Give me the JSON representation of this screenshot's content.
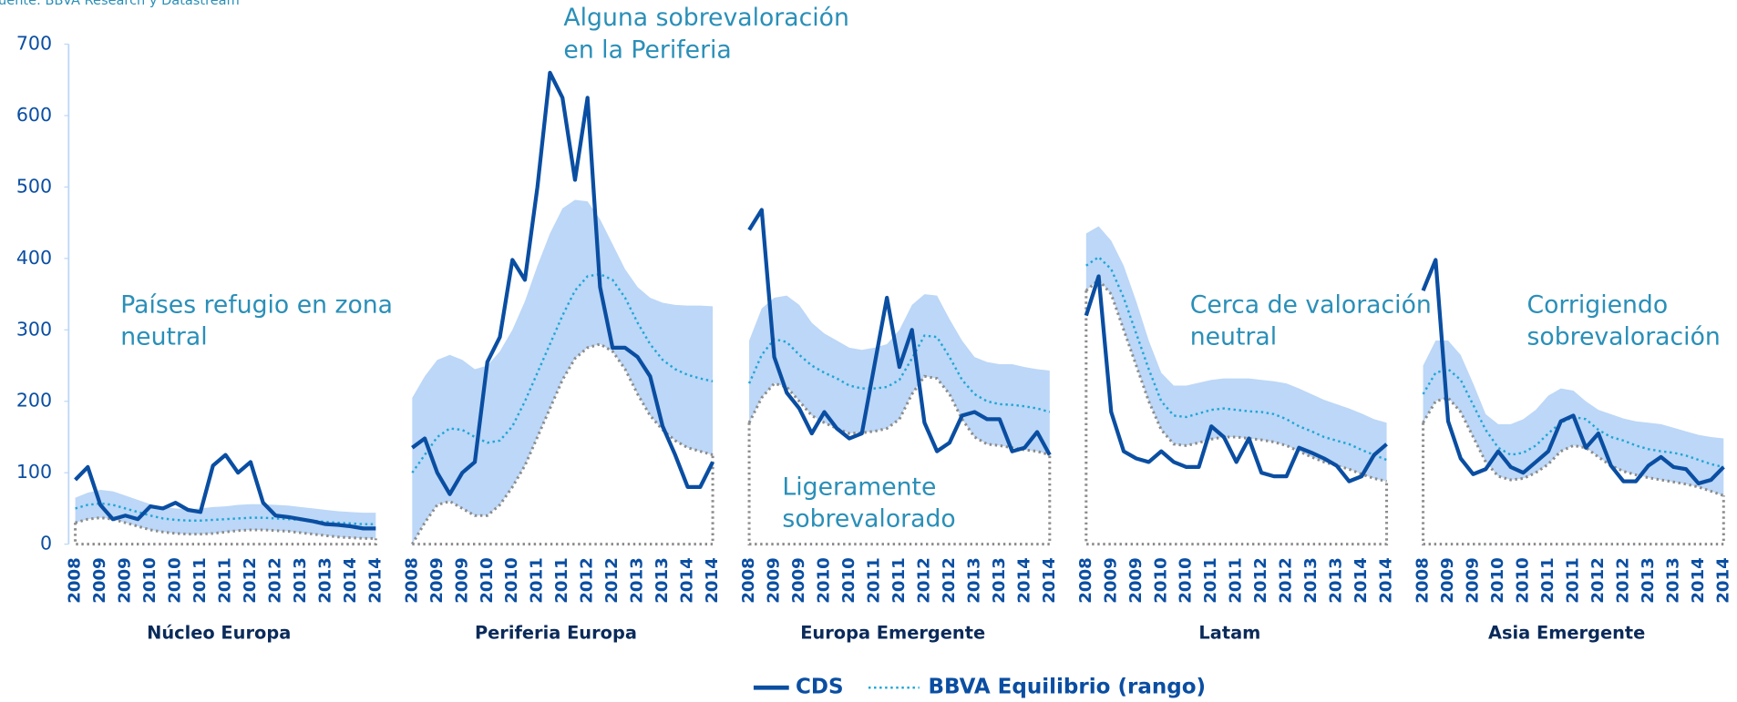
{
  "chart_data": {
    "type": "line",
    "source": "Fuente: BBVA Research y Datastream",
    "ylim": [
      0,
      700
    ],
    "yticks": [
      0,
      100,
      200,
      300,
      400,
      500,
      600,
      700
    ],
    "series": [
      {
        "name": "CDS",
        "color": "#0a4ea2"
      },
      {
        "name": "BBVA Equilibrio (rango)",
        "color": "#1fa5d6",
        "band_color": "#bcd7f7",
        "low_color": "#8c8c8c"
      }
    ],
    "panels": [
      {
        "name": "Núcleo Europa",
        "annotation": [
          "Países refugio en zona",
          "neutral"
        ],
        "categories": [
          "2008",
          null,
          "2009",
          null,
          "2009",
          null,
          "2010",
          null,
          "2010",
          null,
          "2011",
          null,
          "2011",
          null,
          "2012",
          null,
          "2012",
          null,
          "2013",
          null,
          "2013",
          null,
          "2014",
          null,
          "2014"
        ],
        "cds": [
          90,
          108,
          55,
          35,
          40,
          35,
          53,
          50,
          58,
          48,
          45,
          110,
          125,
          100,
          115,
          58,
          40,
          38,
          35,
          32,
          28,
          27,
          25,
          22,
          22
        ],
        "mid": [
          50,
          55,
          57,
          55,
          50,
          45,
          40,
          36,
          34,
          33,
          33,
          34,
          35,
          36,
          37,
          37,
          36,
          35,
          34,
          33,
          31,
          30,
          29,
          28,
          28
        ],
        "high": [
          65,
          72,
          76,
          74,
          68,
          62,
          56,
          52,
          50,
          49,
          50,
          52,
          53,
          55,
          56,
          56,
          55,
          54,
          52,
          50,
          48,
          46,
          45,
          44,
          44
        ],
        "low": [
          30,
          35,
          37,
          35,
          30,
          25,
          20,
          17,
          15,
          14,
          14,
          15,
          17,
          19,
          20,
          20,
          19,
          18,
          16,
          14,
          12,
          10,
          9,
          8,
          8
        ]
      },
      {
        "name": "Periferia Europa",
        "annotation": [
          "Alguna sobrevaloración",
          "en la Periferia"
        ],
        "categories": [
          "2008",
          null,
          "2009",
          null,
          "2009",
          null,
          "2010",
          null,
          "2010",
          null,
          "2011",
          null,
          "2011",
          null,
          "2012",
          null,
          "2012",
          null,
          "2013",
          null,
          "2013",
          null,
          "2014",
          null,
          "2014"
        ],
        "cds": [
          135,
          148,
          100,
          70,
          100,
          115,
          255,
          290,
          398,
          370,
          500,
          660,
          625,
          510,
          625,
          360,
          275,
          275,
          262,
          235,
          165,
          125,
          80,
          80,
          115
        ],
        "mid": [
          100,
          125,
          150,
          162,
          160,
          150,
          142,
          145,
          165,
          200,
          240,
          280,
          320,
          355,
          375,
          378,
          370,
          345,
          310,
          280,
          258,
          245,
          237,
          232,
          228
        ],
        "high": [
          205,
          235,
          258,
          265,
          258,
          245,
          250,
          270,
          300,
          340,
          390,
          435,
          470,
          482,
          480,
          455,
          420,
          385,
          360,
          345,
          338,
          335,
          334,
          334,
          333
        ],
        "low": [
          0,
          30,
          55,
          60,
          50,
          40,
          40,
          55,
          80,
          110,
          150,
          190,
          230,
          260,
          275,
          280,
          270,
          245,
          210,
          180,
          160,
          145,
          135,
          130,
          125
        ]
      },
      {
        "name": "Europa Emergente",
        "annotation": [
          "Ligeramente",
          "sobrevalorado"
        ],
        "categories": [
          "2008",
          null,
          "2009",
          null,
          "2009",
          null,
          "2010",
          null,
          "2010",
          null,
          "2011",
          null,
          "2011",
          null,
          "2012",
          null,
          "2012",
          null,
          "2013",
          null,
          "2013",
          null,
          "2014",
          null,
          "2014"
        ],
        "cds": [
          440,
          468,
          262,
          212,
          190,
          155,
          185,
          162,
          148,
          155,
          250,
          345,
          248,
          300,
          170,
          130,
          142,
          180,
          185,
          175,
          175,
          130,
          135,
          157,
          125
        ],
        "mid": [
          225,
          265,
          287,
          283,
          265,
          250,
          240,
          232,
          222,
          218,
          218,
          220,
          230,
          260,
          292,
          290,
          262,
          230,
          210,
          200,
          196,
          195,
          193,
          190,
          185
        ],
        "high": [
          285,
          330,
          345,
          348,
          335,
          310,
          295,
          285,
          275,
          272,
          275,
          280,
          300,
          335,
          350,
          348,
          315,
          285,
          262,
          255,
          252,
          252,
          248,
          245,
          243
        ],
        "low": [
          170,
          205,
          225,
          220,
          200,
          180,
          170,
          162,
          155,
          156,
          158,
          162,
          175,
          210,
          235,
          232,
          210,
          175,
          150,
          140,
          138,
          135,
          132,
          130,
          125
        ]
      },
      {
        "name": "Latam",
        "annotation": [
          "Cerca de valoración",
          "neutral"
        ],
        "categories": [
          "2008",
          null,
          "2009",
          null,
          "2009",
          null,
          "2010",
          null,
          "2010",
          null,
          "2011",
          null,
          "2011",
          null,
          "2012",
          null,
          "2012",
          null,
          "2013",
          null,
          "2013",
          null,
          "2014",
          null,
          "2014"
        ],
        "cds": [
          320,
          375,
          185,
          130,
          120,
          115,
          130,
          115,
          108,
          108,
          165,
          150,
          115,
          148,
          100,
          95,
          95,
          135,
          128,
          120,
          110,
          88,
          95,
          125,
          140
        ],
        "mid": [
          390,
          402,
          385,
          345,
          295,
          245,
          200,
          180,
          178,
          183,
          188,
          190,
          188,
          186,
          185,
          182,
          175,
          165,
          158,
          150,
          145,
          140,
          132,
          125,
          118
        ],
        "high": [
          435,
          445,
          425,
          390,
          340,
          285,
          240,
          222,
          222,
          226,
          230,
          232,
          232,
          232,
          230,
          228,
          225,
          218,
          210,
          202,
          196,
          190,
          183,
          175,
          170
        ],
        "low": [
          355,
          370,
          350,
          300,
          250,
          200,
          160,
          140,
          138,
          142,
          147,
          150,
          150,
          148,
          146,
          143,
          138,
          130,
          122,
          115,
          110,
          105,
          98,
          92,
          88
        ]
      },
      {
        "name": "Asia Emergente",
        "annotation": [
          "Corrigiendo",
          "sobrevaloración"
        ],
        "categories": [
          "2008",
          null,
          "2009",
          null,
          "2009",
          null,
          "2010",
          null,
          "2010",
          null,
          "2011",
          null,
          "2011",
          null,
          "2012",
          null,
          "2012",
          null,
          "2013",
          null,
          "2013",
          null,
          "2014",
          null,
          "2014"
        ],
        "cds": [
          355,
          398,
          172,
          120,
          98,
          105,
          130,
          108,
          100,
          115,
          130,
          172,
          180,
          135,
          155,
          110,
          88,
          88,
          110,
          122,
          108,
          105,
          85,
          90,
          108
        ],
        "mid": [
          210,
          240,
          245,
          230,
          195,
          160,
          135,
          125,
          128,
          138,
          155,
          170,
          178,
          175,
          160,
          150,
          145,
          138,
          133,
          130,
          128,
          124,
          118,
          112,
          108
        ],
        "high": [
          250,
          285,
          285,
          265,
          225,
          182,
          168,
          168,
          175,
          188,
          208,
          218,
          215,
          200,
          188,
          182,
          176,
          172,
          170,
          168,
          163,
          158,
          153,
          150,
          148
        ],
        "low": [
          170,
          200,
          205,
          185,
          150,
          115,
          95,
          90,
          92,
          100,
          112,
          130,
          138,
          135,
          122,
          110,
          102,
          97,
          93,
          90,
          87,
          84,
          80,
          74,
          68
        ]
      }
    ]
  }
}
